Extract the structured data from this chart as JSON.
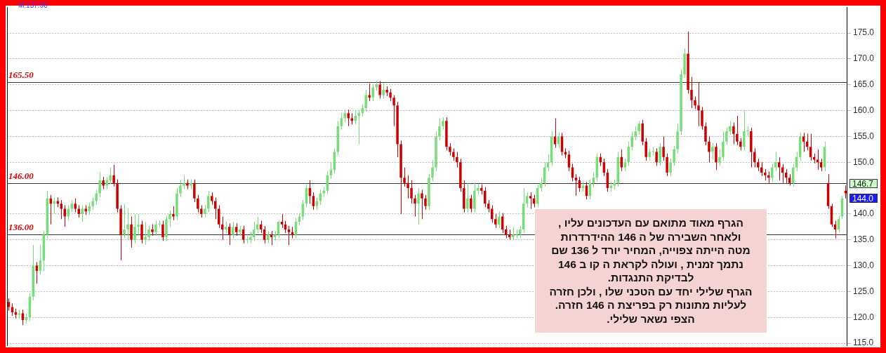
{
  "chart_data": {
    "type": "candlestick",
    "categories": [
      null,
      null,
      null,
      null,
      null,
      null,
      null,
      null,
      null,
      null,
      null,
      null,
      null,
      null,
      null,
      null,
      null,
      null,
      null,
      null,
      null,
      null,
      null,
      null,
      null,
      null,
      null,
      null,
      null,
      null,
      null,
      null,
      null,
      null,
      null,
      null,
      null,
      null,
      null,
      null,
      null,
      null,
      null,
      null,
      null,
      null,
      null,
      null,
      null,
      null,
      null,
      null,
      null,
      null,
      null,
      null,
      null,
      null,
      null,
      null,
      null,
      null,
      null,
      null,
      null,
      null,
      null,
      null,
      null,
      null,
      null,
      null,
      null,
      null,
      null,
      null,
      null,
      null,
      null,
      null,
      null,
      null,
      null,
      null,
      null,
      null,
      null,
      null,
      null,
      null,
      null,
      null,
      null,
      null,
      null,
      null,
      null,
      null,
      null,
      null,
      null,
      null,
      null,
      null,
      null,
      null,
      null,
      null,
      null,
      null,
      null,
      null,
      null,
      null,
      null,
      null,
      null,
      null,
      null,
      null,
      null,
      null,
      null,
      null,
      null,
      null,
      null,
      null,
      null,
      null,
      null,
      null,
      null,
      null,
      null,
      null,
      null,
      null,
      null,
      null,
      null,
      null,
      null,
      null,
      null,
      null,
      null,
      null,
      null,
      null,
      null,
      null,
      null,
      null,
      null,
      null,
      null,
      null,
      null,
      null,
      null,
      null,
      null,
      null,
      null,
      null,
      null,
      null,
      null,
      null,
      null,
      null,
      null,
      null,
      null,
      null,
      null,
      null,
      null,
      null,
      null,
      null,
      null,
      null,
      null,
      null,
      null,
      null,
      null,
      null,
      null,
      null,
      null,
      null,
      null,
      null,
      null,
      null,
      null,
      null,
      null,
      null,
      null,
      null,
      null,
      null,
      null,
      null,
      null,
      null,
      null,
      null,
      null,
      null,
      null,
      null,
      null,
      null,
      null,
      null,
      null,
      null,
      null,
      null,
      null,
      null,
      null,
      null,
      null,
      null,
      null,
      null,
      null,
      null,
      null,
      null,
      null,
      null,
      null,
      null
    ],
    "ohlc": [
      [
        123,
        123.7,
        121.3,
        122
      ],
      [
        122,
        122.7,
        120.3,
        121
      ],
      [
        121,
        121.7,
        119.8,
        120.5
      ],
      [
        120.5,
        121.5,
        119.8,
        120.8
      ],
      [
        120.8,
        121.5,
        118.5,
        119.5
      ],
      [
        119.5,
        120.7,
        118.8,
        120
      ],
      [
        120,
        124.7,
        119.3,
        124
      ],
      [
        124,
        134,
        123.3,
        130
      ],
      [
        130,
        130.7,
        126.5,
        129
      ],
      [
        129,
        134,
        128.3,
        131
      ],
      [
        131,
        136.7,
        129,
        136
      ],
      [
        136,
        144.5,
        135.3,
        143
      ],
      [
        143,
        143.7,
        138,
        142
      ],
      [
        142,
        143.2,
        140,
        142.5
      ],
      [
        142.5,
        143.2,
        141.3,
        142
      ],
      [
        142,
        142.7,
        139,
        141
      ],
      [
        141,
        141.7,
        137.5,
        139.5
      ],
      [
        139.5,
        141.7,
        138.8,
        141
      ],
      [
        141,
        142.7,
        140.3,
        142
      ],
      [
        142,
        143,
        140.3,
        141
      ],
      [
        141,
        141.7,
        139.3,
        140
      ],
      [
        140,
        141.7,
        138.5,
        141
      ],
      [
        141,
        141.7,
        139.8,
        140.5
      ],
      [
        140.5,
        142.2,
        139.8,
        141.5
      ],
      [
        141.5,
        143.2,
        140.8,
        142.5
      ],
      [
        142.5,
        144.7,
        141.8,
        144
      ],
      [
        144,
        148,
        143.3,
        146.5
      ],
      [
        146.5,
        147.2,
        144.8,
        145.5
      ],
      [
        145.5,
        147.2,
        144.8,
        146.5
      ],
      [
        146.5,
        149,
        145.8,
        147.5
      ],
      [
        147.5,
        149.5,
        145.3,
        146
      ],
      [
        146,
        146.7,
        140.3,
        141
      ],
      [
        141,
        141.7,
        131,
        136
      ],
      [
        136,
        142,
        135.3,
        137
      ],
      [
        137,
        141,
        135,
        138
      ],
      [
        138,
        139.5,
        133.5,
        135
      ],
      [
        135,
        140,
        134.3,
        137.5
      ],
      [
        137.5,
        140,
        136,
        138
      ],
      [
        138,
        138.7,
        134.3,
        135
      ],
      [
        135,
        138.5,
        134,
        135.5
      ],
      [
        135.5,
        137.7,
        134.8,
        137
      ],
      [
        137,
        138,
        135.8,
        136.5
      ],
      [
        136.5,
        138.7,
        135.8,
        138
      ],
      [
        138,
        138.7,
        137.3,
        138
      ],
      [
        138,
        138.7,
        134.8,
        135.5
      ],
      [
        135.5,
        139.7,
        134.8,
        139
      ],
      [
        139,
        140.7,
        137.5,
        140
      ],
      [
        140,
        141.5,
        138.8,
        139.5
      ],
      [
        139.5,
        145,
        138.8,
        144
      ],
      [
        144,
        146.5,
        143.3,
        145.5
      ],
      [
        145.5,
        147.5,
        144.8,
        146
      ],
      [
        146,
        146.7,
        144.8,
        145.5
      ],
      [
        145.5,
        146.7,
        144.8,
        146
      ],
      [
        146,
        146.7,
        142.3,
        143
      ],
      [
        143,
        143.7,
        140.3,
        141
      ],
      [
        141,
        141.7,
        139.3,
        140
      ],
      [
        140,
        141.7,
        139.3,
        141
      ],
      [
        141,
        144.5,
        140.3,
        143.5
      ],
      [
        143.5,
        144.2,
        141.8,
        142.5
      ],
      [
        142.5,
        143.2,
        139,
        141
      ],
      [
        141,
        141.7,
        137.3,
        138
      ],
      [
        138,
        139.5,
        135,
        137
      ],
      [
        137,
        138.5,
        136.3,
        137.5
      ],
      [
        137.5,
        138.2,
        134,
        136
      ],
      [
        136,
        138.5,
        135.3,
        137.5
      ],
      [
        137.5,
        138.2,
        135.8,
        136.5
      ],
      [
        136.5,
        137.7,
        135.8,
        137
      ],
      [
        137,
        137.7,
        134.3,
        135
      ],
      [
        135,
        135.7,
        134.3,
        135
      ],
      [
        135,
        136.5,
        134.3,
        135.5
      ],
      [
        135.5,
        138.5,
        134.8,
        137
      ],
      [
        137,
        139.5,
        136.3,
        138
      ],
      [
        138,
        138.7,
        136.3,
        137
      ],
      [
        137,
        137.7,
        134.3,
        135
      ],
      [
        135,
        136.7,
        134.3,
        136
      ],
      [
        136,
        136.7,
        134,
        135.5
      ],
      [
        135.5,
        136.7,
        134.8,
        136
      ],
      [
        136,
        138.7,
        135.3,
        138.5
      ],
      [
        138.5,
        140,
        137.3,
        138
      ],
      [
        138,
        138.7,
        136.3,
        137
      ],
      [
        137,
        137.7,
        134,
        136.5
      ],
      [
        136.5,
        137.5,
        135.3,
        136
      ],
      [
        136,
        139.2,
        135.3,
        138.5
      ],
      [
        138.5,
        140.2,
        137.8,
        139.5
      ],
      [
        139.5,
        142.7,
        138.8,
        142
      ],
      [
        142,
        145.7,
        141.3,
        145
      ],
      [
        145,
        146.5,
        142,
        143.5
      ],
      [
        143.5,
        144.2,
        140.8,
        141.5
      ],
      [
        141.5,
        143.2,
        140.8,
        142.5
      ],
      [
        142.5,
        144.7,
        141.8,
        144
      ],
      [
        144,
        145.2,
        143.3,
        144.5
      ],
      [
        144.5,
        148.2,
        143.8,
        147.5
      ],
      [
        147.5,
        150,
        146.8,
        148.5
      ],
      [
        148.5,
        152.7,
        147.8,
        152
      ],
      [
        152,
        158,
        151.3,
        157
      ],
      [
        157,
        159.5,
        156.3,
        158.5
      ],
      [
        158.5,
        160.2,
        157.8,
        159.5
      ],
      [
        159.5,
        160.2,
        157,
        158.5
      ],
      [
        158.5,
        159.5,
        157.3,
        158
      ],
      [
        158,
        160,
        157.3,
        159
      ],
      [
        159,
        160.2,
        153.5,
        159.5
      ],
      [
        159.5,
        161.2,
        158.8,
        160.5
      ],
      [
        160.5,
        164,
        159.8,
        163
      ],
      [
        163,
        165.2,
        161.8,
        162.5
      ],
      [
        162.5,
        165.2,
        161.8,
        164.5
      ],
      [
        164.5,
        165.7,
        163.8,
        165
      ],
      [
        165,
        165.7,
        162.3,
        163
      ],
      [
        163,
        165.3,
        162.3,
        164
      ],
      [
        164,
        164.7,
        162.8,
        163.5
      ],
      [
        163.5,
        164.2,
        161.8,
        162.5
      ],
      [
        162.5,
        163,
        157,
        161
      ],
      [
        161,
        161.7,
        151,
        153.5
      ],
      [
        153.5,
        154.2,
        140,
        147
      ],
      [
        147,
        149,
        145.3,
        146
      ],
      [
        146,
        147.5,
        143,
        145
      ],
      [
        145,
        146.5,
        142,
        143
      ],
      [
        143,
        143.7,
        139.5,
        142
      ],
      [
        142,
        145,
        138,
        144
      ],
      [
        144,
        144.7,
        139,
        143
      ],
      [
        143,
        143.7,
        140.8,
        141.5
      ],
      [
        141.5,
        147.7,
        140.8,
        147
      ],
      [
        147,
        150.5,
        146.3,
        149
      ],
      [
        149,
        156,
        148.3,
        155
      ],
      [
        155,
        158.5,
        154.3,
        157
      ],
      [
        157,
        158.7,
        156.3,
        158
      ],
      [
        158,
        158.7,
        152.3,
        153
      ],
      [
        153,
        153.7,
        151.3,
        152
      ],
      [
        152,
        152.7,
        150.3,
        151
      ],
      [
        151,
        152,
        149,
        150
      ],
      [
        150,
        150.7,
        144.3,
        145
      ],
      [
        145,
        146.5,
        140.3,
        141
      ],
      [
        141,
        146,
        140.3,
        143
      ],
      [
        143,
        143.7,
        140.3,
        141
      ],
      [
        141,
        146,
        140.3,
        144.5
      ],
      [
        144.5,
        145.7,
        143.8,
        145
      ],
      [
        145,
        145.7,
        143.8,
        144.5
      ],
      [
        144.5,
        145.2,
        141.3,
        142
      ],
      [
        142,
        142.7,
        140.3,
        141
      ],
      [
        141,
        141.7,
        138.3,
        139
      ],
      [
        139,
        140,
        137.3,
        138
      ],
      [
        138,
        140.5,
        137.3,
        139.5
      ],
      [
        139.5,
        140.2,
        136.3,
        137
      ],
      [
        137,
        137.7,
        135.3,
        136
      ],
      [
        136,
        137,
        135,
        135.5
      ],
      [
        135.5,
        137.5,
        135,
        136
      ],
      [
        136,
        137,
        135.3,
        136
      ],
      [
        136,
        137.7,
        135.3,
        137
      ],
      [
        137,
        145,
        136.3,
        142
      ],
      [
        142,
        144.2,
        141.3,
        143.5
      ],
      [
        143.5,
        144.2,
        141,
        143
      ],
      [
        143,
        143.7,
        141.3,
        142
      ],
      [
        142,
        145.7,
        141.3,
        145
      ],
      [
        145,
        147,
        144.3,
        146
      ],
      [
        146,
        150,
        145.3,
        149
      ],
      [
        149,
        151.5,
        148.3,
        150
      ],
      [
        150,
        156,
        149.3,
        155
      ],
      [
        155,
        158.5,
        152.8,
        153.5
      ],
      [
        153.5,
        155.7,
        152.8,
        155
      ],
      [
        155,
        155.7,
        151.3,
        152
      ],
      [
        152,
        152.7,
        150.8,
        151.5
      ],
      [
        151.5,
        152.2,
        148.3,
        149
      ],
      [
        149,
        149.7,
        146.3,
        147
      ],
      [
        147,
        147.7,
        143.5,
        146.5
      ],
      [
        146.5,
        147.2,
        144.3,
        145
      ],
      [
        145,
        146.2,
        144.3,
        145.5
      ],
      [
        145.5,
        146.2,
        142.8,
        143.5
      ],
      [
        143.5,
        146.7,
        142.8,
        146
      ],
      [
        146,
        148,
        145.3,
        147
      ],
      [
        147,
        151.7,
        146.3,
        151
      ],
      [
        151,
        151.7,
        149.3,
        150
      ],
      [
        150,
        150.7,
        147.3,
        148
      ],
      [
        148,
        148.7,
        144.3,
        145
      ],
      [
        145,
        146.2,
        144.3,
        145.5
      ],
      [
        145.5,
        146.7,
        144.8,
        146
      ],
      [
        146,
        152,
        145.3,
        151
      ],
      [
        151,
        152.5,
        148.3,
        149
      ],
      [
        149,
        150.7,
        148.3,
        150
      ],
      [
        150,
        154,
        149.3,
        153
      ],
      [
        153,
        156,
        152.3,
        155
      ],
      [
        155,
        157,
        154.3,
        156
      ],
      [
        156,
        158,
        155.3,
        157.5
      ],
      [
        157.5,
        158.2,
        153.3,
        154
      ],
      [
        154,
        154.7,
        150.3,
        151
      ],
      [
        151,
        152.7,
        150.3,
        152
      ],
      [
        152,
        153,
        151.3,
        152
      ],
      [
        152,
        152.7,
        149.3,
        150
      ],
      [
        150,
        153.7,
        149.3,
        153
      ],
      [
        153,
        155,
        150.3,
        151
      ],
      [
        151,
        151.7,
        147.3,
        148
      ],
      [
        148,
        150.7,
        147.3,
        150
      ],
      [
        150,
        153.2,
        149.3,
        152.5
      ],
      [
        152.5,
        157.5,
        151.8,
        156
      ],
      [
        156,
        168,
        155.3,
        167
      ],
      [
        167,
        172,
        166.3,
        171
      ],
      [
        171,
        175.3,
        163.3,
        164
      ],
      [
        164,
        166.5,
        160.5,
        162
      ],
      [
        162,
        162.7,
        160.3,
        161
      ],
      [
        161,
        165.5,
        157,
        160
      ],
      [
        160,
        160.7,
        156.3,
        157
      ],
      [
        157,
        157.7,
        153.3,
        154
      ],
      [
        154,
        155,
        150,
        152
      ],
      [
        152,
        153.7,
        150.5,
        153
      ],
      [
        153,
        153.7,
        148.5,
        150
      ],
      [
        150,
        152.5,
        149.3,
        151
      ],
      [
        151,
        156,
        150.3,
        154
      ],
      [
        154,
        156.7,
        153.3,
        156
      ],
      [
        156,
        158,
        155.3,
        157
      ],
      [
        157,
        157.7,
        153.5,
        155.5
      ],
      [
        155.5,
        159,
        153.3,
        154
      ],
      [
        154,
        154.7,
        152.3,
        153
      ],
      [
        153,
        160,
        152.3,
        156
      ],
      [
        156,
        157,
        155,
        156
      ],
      [
        156,
        156.7,
        149,
        152
      ],
      [
        152,
        152.7,
        149,
        150
      ],
      [
        150,
        150.7,
        148.3,
        149
      ],
      [
        149,
        150,
        147.3,
        148
      ],
      [
        148,
        148.7,
        146.5,
        147.5
      ],
      [
        147.5,
        148.2,
        146,
        147
      ],
      [
        147,
        149.7,
        146.3,
        149
      ],
      [
        149,
        152,
        148.3,
        150
      ],
      [
        150,
        151,
        146.5,
        149
      ],
      [
        149,
        149.7,
        146,
        148
      ],
      [
        148,
        148.7,
        146,
        147
      ],
      [
        147,
        147.7,
        145.5,
        146
      ],
      [
        146,
        149.7,
        145.3,
        149
      ],
      [
        149,
        152,
        148.3,
        151
      ],
      [
        151,
        155.7,
        150.3,
        155
      ],
      [
        155,
        155.7,
        152,
        154
      ],
      [
        154,
        155.5,
        152.3,
        153
      ],
      [
        153,
        155.5,
        150.3,
        151
      ],
      [
        151,
        151.7,
        149.8,
        150.5
      ],
      [
        150.5,
        152.5,
        148.5,
        150
      ],
      [
        150,
        150.7,
        148.3,
        149
      ],
      [
        149,
        154,
        148.3,
        153
      ],
      [
        146,
        147.7,
        141,
        141.5
      ],
      [
        141.5,
        142,
        137.5,
        138
      ],
      [
        138,
        138.7,
        135.3,
        137
      ],
      [
        137,
        139.7,
        136.5,
        139
      ],
      [
        139.5,
        143.5,
        139,
        143
      ],
      [
        144.5,
        145.5,
        143,
        144
      ]
    ],
    "colors": [
      "#cc0000",
      "#cc0000",
      "#cc0000",
      "#77dd77",
      "#cc0000",
      "#77dd77",
      "#77dd77",
      "#77dd77",
      "#cc0000",
      "#77dd77",
      "#77dd77",
      "#77dd77",
      "#cc0000",
      "#77dd77",
      "#cc0000",
      "#cc0000",
      "#cc0000",
      "#77dd77",
      "#77dd77",
      "#cc0000",
      "#cc0000",
      "#77dd77",
      "#cc0000",
      "#77dd77",
      "#77dd77",
      "#77dd77",
      "#77dd77",
      "#cc0000",
      "#77dd77",
      "#77dd77",
      "#cc0000",
      "#cc0000",
      "#cc0000",
      "#77dd77",
      "#77dd77",
      "#cc0000",
      "#77dd77",
      "#77dd77",
      "#cc0000",
      "#77dd77",
      "#77dd77",
      "#cc0000",
      "#77dd77",
      "#77dd77",
      "#cc0000",
      "#77dd77",
      "#77dd77",
      "#cc0000",
      "#77dd77",
      "#77dd77",
      "#77dd77",
      "#cc0000",
      "#77dd77",
      "#cc0000",
      "#cc0000",
      "#cc0000",
      "#77dd77",
      "#77dd77",
      "#cc0000",
      "#cc0000",
      "#cc0000",
      "#cc0000",
      "#77dd77",
      "#cc0000",
      "#77dd77",
      "#cc0000",
      "#77dd77",
      "#cc0000",
      "#77dd77",
      "#77dd77",
      "#77dd77",
      "#77dd77",
      "#cc0000",
      "#cc0000",
      "#77dd77",
      "#cc0000",
      "#77dd77",
      "#77dd77",
      "#cc0000",
      "#cc0000",
      "#cc0000",
      "#cc0000",
      "#77dd77",
      "#77dd77",
      "#77dd77",
      "#77dd77",
      "#cc0000",
      "#cc0000",
      "#77dd77",
      "#77dd77",
      "#77dd77",
      "#77dd77",
      "#77dd77",
      "#77dd77",
      "#77dd77",
      "#77dd77",
      "#77dd77",
      "#cc0000",
      "#cc0000",
      "#77dd77",
      "#77dd77",
      "#77dd77",
      "#77dd77",
      "#cc0000",
      "#77dd77",
      "#77dd77",
      "#cc0000",
      "#77dd77",
      "#cc0000",
      "#cc0000",
      "#cc0000",
      "#cc0000",
      "#cc0000",
      "#cc0000",
      "#cc0000",
      "#cc0000",
      "#cc0000",
      "#77dd77",
      "#cc0000",
      "#cc0000",
      "#77dd77",
      "#77dd77",
      "#77dd77",
      "#77dd77",
      "#77dd77",
      "#cc0000",
      "#cc0000",
      "#cc0000",
      "#cc0000",
      "#cc0000",
      "#cc0000",
      "#77dd77",
      "#cc0000",
      "#77dd77",
      "#77dd77",
      "#cc0000",
      "#cc0000",
      "#cc0000",
      "#cc0000",
      "#cc0000",
      "#77dd77",
      "#cc0000",
      "#cc0000",
      "#cc0000",
      "#77dd77",
      "#77dd77",
      "#77dd77",
      "#77dd77",
      "#77dd77",
      "#cc0000",
      "#cc0000",
      "#77dd77",
      "#77dd77",
      "#77dd77",
      "#77dd77",
      "#77dd77",
      "#cc0000",
      "#77dd77",
      "#cc0000",
      "#cc0000",
      "#cc0000",
      "#cc0000",
      "#cc0000",
      "#cc0000",
      "#77dd77",
      "#cc0000",
      "#77dd77",
      "#77dd77",
      "#77dd77",
      "#cc0000",
      "#cc0000",
      "#cc0000",
      "#77dd77",
      "#77dd77",
      "#77dd77",
      "#cc0000",
      "#77dd77",
      "#77dd77",
      "#77dd77",
      "#77dd77",
      "#77dd77",
      "#cc0000",
      "#cc0000",
      "#77dd77",
      "#77dd77",
      "#cc0000",
      "#77dd77",
      "#cc0000",
      "#cc0000",
      "#77dd77",
      "#77dd77",
      "#77dd77",
      "#77dd77",
      "#77dd77",
      "#cc0000",
      "#cc0000",
      "#cc0000",
      "#cc0000",
      "#cc0000",
      "#cc0000",
      "#cc0000",
      "#77dd77",
      "#cc0000",
      "#77dd77",
      "#77dd77",
      "#77dd77",
      "#77dd77",
      "#cc0000",
      "#cc0000",
      "#cc0000",
      "#77dd77",
      "#77dd77",
      "#cc0000",
      "#cc0000",
      "#cc0000",
      "#cc0000",
      "#cc0000",
      "#cc0000",
      "#77dd77",
      "#77dd77",
      "#cc0000",
      "#cc0000",
      "#cc0000",
      "#cc0000",
      "#77dd77",
      "#77dd77",
      "#77dd77",
      "#cc0000",
      "#cc0000",
      "#cc0000",
      "#cc0000",
      "#cc0000",
      "#cc0000",
      "#77dd77",
      "#cc0000",
      "#cc0000",
      "#cc0000",
      "#77dd77",
      "#77dd77",
      "#cc0000"
    ],
    "ylim": [
      114.5,
      180
    ],
    "yticks": [
      {
        "value": 115,
        "label": "115.0"
      },
      {
        "value": 120,
        "label": "120.0"
      },
      {
        "value": 125,
        "label": "125.0"
      },
      {
        "value": 130,
        "label": "130.0"
      },
      {
        "value": 135,
        "label": "135.0"
      },
      {
        "value": 140,
        "label": "140.0"
      },
      {
        "value": 150,
        "label": "150.0"
      },
      {
        "value": 155,
        "label": "155.0"
      },
      {
        "value": 160,
        "label": "160.0"
      },
      {
        "value": 165,
        "label": "165.0"
      },
      {
        "value": 170,
        "label": "170.0"
      },
      {
        "value": 175,
        "label": "175.0"
      }
    ],
    "grid": "y",
    "legend": false,
    "ref_lines": [
      {
        "axis": "y",
        "value": 165.5,
        "label": "165.50",
        "color": "#333333"
      },
      {
        "axis": "y",
        "value": 146,
        "label": "146.00",
        "color": "#333333"
      },
      {
        "axis": "y",
        "value": 136,
        "label": "136.00",
        "color": "#333333"
      }
    ],
    "annotations": [
      "M:137.90",
      "הגרף מאוד מתואם  עם  העדכונים עליו ,\nולאחר  השבירה  של ה 146   ההידרדרות\nמטה  הייתה  צפוייה,  המחיר יורד ל 136 שם\nנתמך זמנית  , ועולה  לקראת  ה קו ב  146\nלבדיקת  התנגדות.\nהגרף שלילי  יחד  עם  הטכני שלו , ולכן חזרה\nלעליות  מתונות רק  בפריצת ה  146  חזרה.\nהצפי נשאר  שלילי.",
      "146.7",
      "144.0"
    ]
  }
}
